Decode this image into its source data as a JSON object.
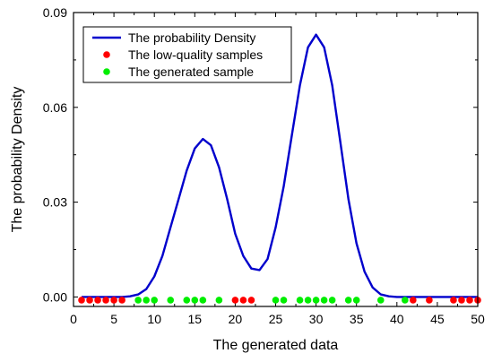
{
  "chart_data": {
    "type": "line",
    "xlabel": "The generated data",
    "ylabel": "The probability Density",
    "xlim": [
      0,
      50
    ],
    "ylim": [
      -0.003,
      0.09
    ],
    "x_ticks": [
      0,
      5,
      10,
      15,
      20,
      25,
      30,
      35,
      40,
      45,
      50
    ],
    "y_ticks": [
      0.0,
      0.03,
      0.06,
      0.09
    ],
    "y_tick_labels": [
      "0.00",
      "0.03",
      "0.06",
      "0.09"
    ],
    "legend_position": "top-left",
    "series": [
      {
        "name": "The probability Density",
        "kind": "line",
        "color": "#0000CC",
        "x": [
          1,
          2,
          3,
          4,
          5,
          6,
          7,
          8,
          9,
          10,
          11,
          12,
          13,
          14,
          15,
          16,
          17,
          18,
          19,
          20,
          21,
          22,
          23,
          24,
          25,
          26,
          27,
          28,
          29,
          30,
          31,
          32,
          33,
          34,
          35,
          36,
          37,
          38,
          39,
          40,
          41,
          42,
          43,
          44,
          45,
          46,
          47,
          48,
          49,
          50
        ],
        "y": [
          0.0,
          0.0,
          0.0,
          0.0,
          0.0,
          0.0,
          0.0002,
          0.0008,
          0.0025,
          0.0065,
          0.013,
          0.022,
          0.031,
          0.04,
          0.047,
          0.05,
          0.048,
          0.041,
          0.031,
          0.02,
          0.013,
          0.009,
          0.0085,
          0.012,
          0.022,
          0.035,
          0.051,
          0.067,
          0.079,
          0.083,
          0.079,
          0.067,
          0.049,
          0.031,
          0.017,
          0.008,
          0.003,
          0.0008,
          0.0002,
          0.0,
          0.0,
          0.0,
          0.0,
          0.0,
          0.0,
          0.0,
          0.0,
          0.0,
          0.0,
          0.0
        ]
      },
      {
        "name": "The low-quality samples",
        "kind": "scatter",
        "color": "#FF0000",
        "x": [
          1,
          2,
          3,
          4,
          5,
          6,
          20,
          21,
          22,
          42,
          44,
          47,
          48,
          49,
          50
        ],
        "y": [
          -0.001,
          -0.001,
          -0.001,
          -0.001,
          -0.001,
          -0.001,
          -0.001,
          -0.001,
          -0.001,
          -0.001,
          -0.001,
          -0.001,
          -0.001,
          -0.001,
          -0.001
        ]
      },
      {
        "name": "The generated sample",
        "kind": "scatter",
        "color": "#00EE00",
        "x": [
          8,
          9,
          10,
          12,
          14,
          15,
          16,
          18,
          25,
          26,
          28,
          29,
          30,
          31,
          32,
          34,
          35,
          38,
          41
        ],
        "y": [
          -0.001,
          -0.001,
          -0.001,
          -0.001,
          -0.001,
          -0.001,
          -0.001,
          -0.001,
          -0.001,
          -0.001,
          -0.001,
          -0.001,
          -0.001,
          -0.001,
          -0.001,
          -0.001,
          -0.001,
          -0.001,
          -0.001
        ]
      }
    ]
  }
}
